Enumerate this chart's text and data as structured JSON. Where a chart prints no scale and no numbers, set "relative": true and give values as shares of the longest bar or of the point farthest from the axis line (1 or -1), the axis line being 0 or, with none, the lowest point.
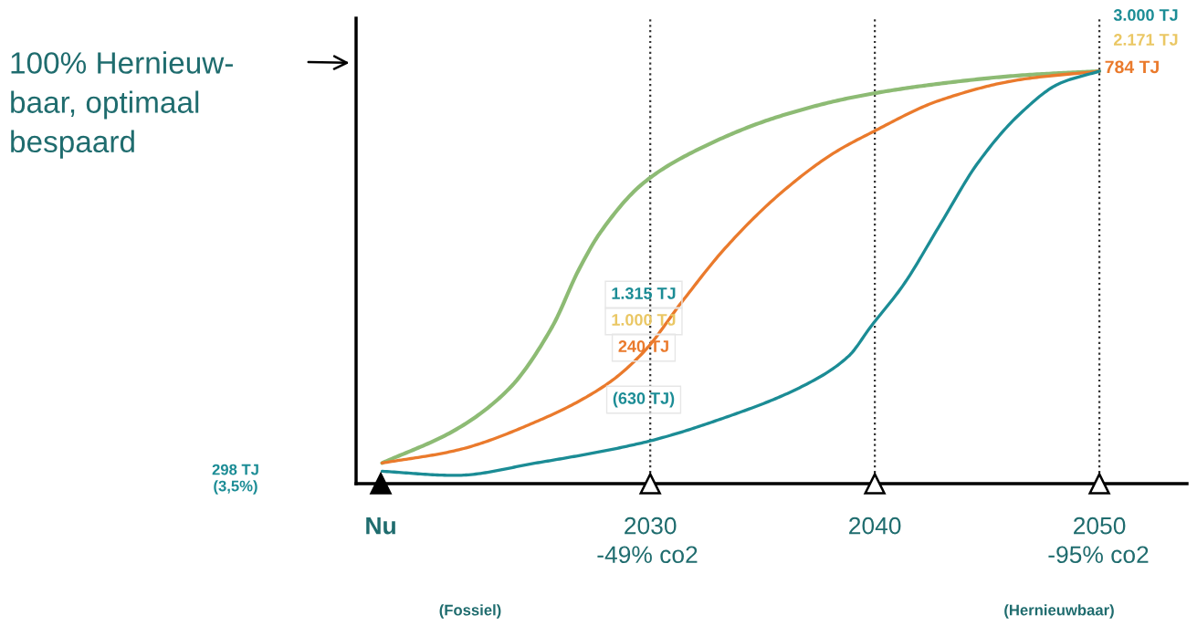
{
  "chart_data": {
    "type": "line",
    "relative": true,
    "tick_labels": "x",
    "grid": false,
    "legend": false,
    "marker": "none",
    "line_style": "solid",
    "xlim": [
      2016.9,
      2053.9
    ],
    "xticks": [
      {
        "value": 2018,
        "label": "Nu"
      },
      2030,
      2040,
      2050
    ],
    "series": [
      {
        "color": "#8dbb74",
        "x": [
          2018.06,
          2021.31,
          2023.71,
          2025.63,
          2026.83,
          2027.79,
          2029.72,
          2032.12,
          2035.72,
          2039.33,
          2042.93,
          2046.53,
          2050
        ],
        "values": [
          0.05,
          0.13,
          0.23,
          0.38,
          0.52,
          0.61,
          0.73,
          0.81,
          0.89,
          0.94,
          0.97,
          0.99,
          1
        ]
      },
      {
        "color": "#ea7a2c",
        "x": [
          2018.06,
          2021.31,
          2024.91,
          2028.04,
          2029.72,
          2031.4,
          2033.32,
          2035.72,
          2038.13,
          2039.81,
          2042.93,
          2046.53,
          2050
        ],
        "values": [
          0.05,
          0.08,
          0.15,
          0.24,
          0.32,
          0.44,
          0.57,
          0.7,
          0.8,
          0.85,
          0.93,
          0.98,
          1
        ]
      },
      {
        "color": "#1b8c95",
        "x": [
          2018.06,
          2021.31,
          2024.91,
          2029.72,
          2033.32,
          2036.92,
          2038.85,
          2039.81,
          2041.25,
          2042.93,
          2044.62,
          2046.53,
          2048.22,
          2050
        ],
        "values": [
          0.03,
          0.02,
          0.05,
          0.1,
          0.16,
          0.24,
          0.31,
          0.38,
          0.48,
          0.63,
          0.78,
          0.9,
          0.97,
          1
        ]
      }
    ],
    "ref_lines": [
      {
        "axis": "x",
        "value": 2030,
        "line_style": "dotted"
      },
      {
        "axis": "x",
        "value": 2040,
        "line_style": "dotted"
      },
      {
        "axis": "x",
        "value": 2050,
        "line_style": "dotted"
      }
    ],
    "annotations": [
      "100% Hernieuw-\nbaar, optimaal\nbespaard",
      "3.000 TJ",
      "2.171 TJ",
      "784 TJ",
      "1.315 TJ",
      "1.000 TJ",
      "240 TJ",
      "(630 TJ)",
      "298 TJ\n(3,5%)",
      "-49% co2",
      "-95% co2",
      "(Fossiel)",
      "(Hernieuwbaar)"
    ]
  }
}
